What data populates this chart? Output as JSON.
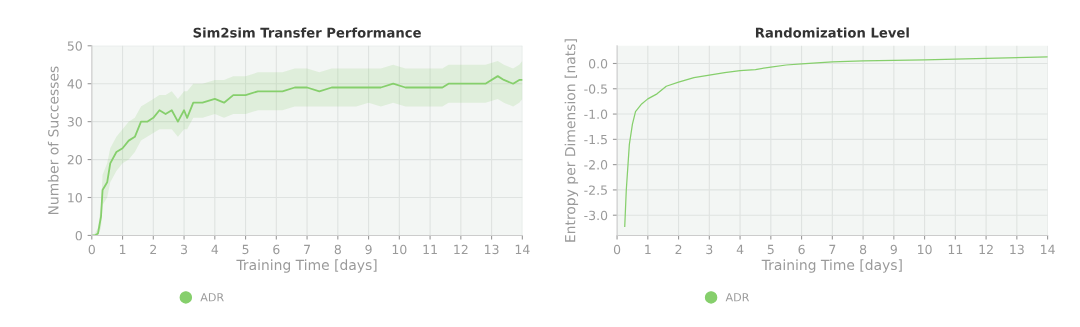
{
  "chart_data": [
    {
      "type": "line",
      "title": "Sim2sim Transfer Performance",
      "xlabel": "Training Time [days]",
      "ylabel": "Number of Successes",
      "xlim": [
        0,
        14
      ],
      "ylim": [
        0,
        50
      ],
      "xticks": [
        0,
        1,
        2,
        3,
        4,
        5,
        6,
        7,
        8,
        9,
        10,
        11,
        12,
        13,
        14
      ],
      "yticks": [
        0,
        10,
        20,
        30,
        40,
        50
      ],
      "grid": true,
      "legend": "bottom",
      "x": [
        0,
        0.1,
        0.2,
        0.3,
        0.35,
        0.5,
        0.6,
        0.8,
        1.0,
        1.2,
        1.4,
        1.6,
        1.8,
        2.0,
        2.2,
        2.4,
        2.6,
        2.8,
        3.0,
        3.1,
        3.3,
        3.6,
        4.0,
        4.3,
        4.6,
        5.0,
        5.4,
        5.8,
        6.2,
        6.6,
        7.0,
        7.4,
        7.8,
        8.2,
        8.6,
        9.0,
        9.4,
        9.8,
        10.2,
        10.6,
        11.0,
        11.4,
        11.6,
        12.0,
        12.4,
        12.8,
        13.2,
        13.4,
        13.7,
        13.9,
        14
      ],
      "series": [
        {
          "name": "ADR",
          "color": "#86cf6c",
          "values": [
            0,
            0,
            0.5,
            5,
            12,
            14,
            19,
            22,
            23,
            25,
            26,
            30,
            30,
            31,
            33,
            32,
            33,
            30,
            33,
            31,
            35,
            35,
            36,
            35,
            37,
            37,
            38,
            38,
            38,
            39,
            39,
            38,
            39,
            39,
            39,
            39,
            39,
            40,
            39,
            39,
            39,
            39,
            40,
            40,
            40,
            40,
            42,
            41,
            40,
            41,
            41
          ],
          "lower": [
            0,
            0,
            0,
            2,
            8,
            10,
            14,
            17,
            19,
            20,
            22,
            25,
            26,
            27,
            28,
            28,
            28,
            26,
            28,
            28,
            31,
            31,
            32,
            31,
            32,
            32,
            33,
            33,
            33,
            34,
            34,
            34,
            34,
            34,
            34,
            35,
            34,
            35,
            34,
            34,
            34,
            34,
            35,
            35,
            35,
            35,
            36,
            35,
            34,
            35,
            36
          ],
          "upper": [
            0,
            0.5,
            2,
            8,
            16,
            19,
            23,
            26,
            28,
            30,
            31,
            34,
            35,
            36,
            37,
            37,
            38,
            36,
            38,
            38,
            40,
            40,
            41,
            41,
            42,
            42,
            43,
            43,
            43,
            44,
            44,
            43,
            44,
            44,
            44,
            44,
            44,
            45,
            44,
            44,
            44,
            44,
            45,
            45,
            45,
            45,
            46,
            45,
            44,
            45,
            46
          ]
        }
      ]
    },
    {
      "type": "line",
      "title": "Randomization Level",
      "xlabel": "Training Time [days]",
      "ylabel": "Entropy per Dimension [nats]",
      "xlim": [
        0,
        14
      ],
      "ylim": [
        -3.4,
        0.35
      ],
      "xticks": [
        0,
        1,
        2,
        3,
        4,
        5,
        6,
        7,
        8,
        9,
        10,
        11,
        12,
        13,
        14
      ],
      "yticks": [
        {
          "value": -3.0,
          "label": "-3.0"
        },
        {
          "value": -2.5,
          "label": "-2.5"
        },
        {
          "value": -2.0,
          "label": "-2.0"
        },
        {
          "value": -1.5,
          "label": "-1.5"
        },
        {
          "value": -1.0,
          "label": "-1.0"
        },
        {
          "value": -0.5,
          "label": "-0.5"
        },
        {
          "value": 0.0,
          "label": "0.0"
        }
      ],
      "grid": true,
      "legend": "bottom",
      "x": [
        0.25,
        0.3,
        0.4,
        0.5,
        0.6,
        0.8,
        1.0,
        1.3,
        1.6,
        2.0,
        2.5,
        3.0,
        3.5,
        4.0,
        4.5,
        5.0,
        5.5,
        6.0,
        7.0,
        8.0,
        10,
        12,
        14
      ],
      "series": [
        {
          "name": "ADR",
          "color": "#86cf6c",
          "values": [
            -3.22,
            -2.5,
            -1.6,
            -1.2,
            -0.95,
            -0.8,
            -0.7,
            -0.6,
            -0.45,
            -0.37,
            -0.28,
            -0.23,
            -0.18,
            -0.14,
            -0.12,
            -0.07,
            -0.03,
            -0.01,
            0.03,
            0.05,
            0.07,
            0.1,
            0.13
          ]
        }
      ]
    }
  ]
}
